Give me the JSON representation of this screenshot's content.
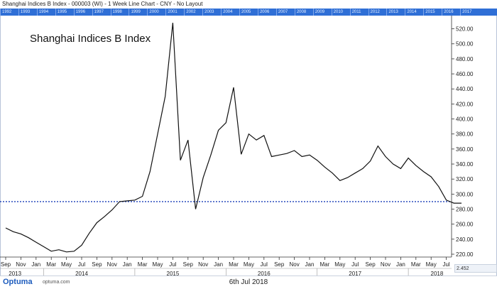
{
  "window": {
    "title": "Shanghai Indices B Index - 000003 (WI) - 1 Week Line Chart - CNY - No Layout"
  },
  "year_band": [
    "1992",
    "1993",
    "1994",
    "1995",
    "1996",
    "1997",
    "1998",
    "1999",
    "2000",
    "2001",
    "2002",
    "2003",
    "2004",
    "2005",
    "2006",
    "2007",
    "2008",
    "2009",
    "2010",
    "2011",
    "2012",
    "2013",
    "2014",
    "2015",
    "2016",
    "2017"
  ],
  "footer": {
    "brand": "Optuma",
    "url": "optuma.com",
    "date": "6th Jul 2018"
  },
  "scale_badge": "2.452",
  "colors": {
    "line": "#111111",
    "reference_line": "#1a3fb8",
    "year_band": "#2f6fd6",
    "axis": "#333333"
  },
  "chart_data": {
    "type": "line",
    "title": "Shanghai Indices B Index",
    "ylim": [
      220,
      530
    ],
    "yticks": [
      220,
      240,
      260,
      280,
      300,
      320,
      340,
      360,
      380,
      400,
      420,
      440,
      460,
      480,
      500,
      520
    ],
    "month_ticks": [
      "Sep",
      "Nov",
      "Jan",
      "Mar",
      "May",
      "Jul",
      "Sep",
      "Nov",
      "Jan",
      "Mar",
      "May",
      "Jul",
      "Sep",
      "Nov",
      "Jan",
      "Mar",
      "May",
      "Jul",
      "Sep",
      "Nov",
      "Jan",
      "Mar",
      "May",
      "Jul",
      "Sep",
      "Nov",
      "Jan",
      "Mar",
      "May",
      "Jul"
    ],
    "year_labels": [
      "2013",
      "2014",
      "2015",
      "2016",
      "2017",
      "2018"
    ],
    "grid": false,
    "reference_line": {
      "value": 290,
      "style": "dotted"
    },
    "series": [
      {
        "x": [
          0,
          0.5,
          1,
          1.5,
          2,
          2.5,
          3,
          3.5,
          4,
          4.5,
          5,
          5.5,
          6,
          6.5,
          7,
          7.5,
          8,
          8.5,
          9,
          9.5,
          10,
          10.5,
          11,
          11.5,
          12,
          12.5,
          13,
          13.5,
          14,
          14.5,
          15,
          15.5,
          16,
          16.5,
          17,
          17.5,
          18,
          18.5,
          19,
          19.5,
          20,
          20.5,
          21,
          21.5,
          22,
          22.5,
          23,
          23.5,
          24,
          24.5,
          25,
          25.5,
          26,
          26.5,
          27,
          27.5,
          28,
          28.5,
          29,
          29.5,
          30
        ],
        "values": [
          255,
          250,
          247,
          242,
          236,
          230,
          224,
          226,
          223,
          224,
          232,
          248,
          262,
          270,
          279,
          290,
          291,
          292,
          297,
          330,
          380,
          430,
          528,
          345,
          372,
          280,
          322,
          352,
          385,
          395,
          442,
          353,
          380,
          372,
          378,
          350,
          352,
          354,
          358,
          350,
          352,
          345,
          336,
          328,
          318,
          322,
          328,
          334,
          344,
          364,
          350,
          340,
          334,
          348,
          338,
          330,
          323,
          310,
          292,
          288,
          288
        ]
      }
    ]
  }
}
